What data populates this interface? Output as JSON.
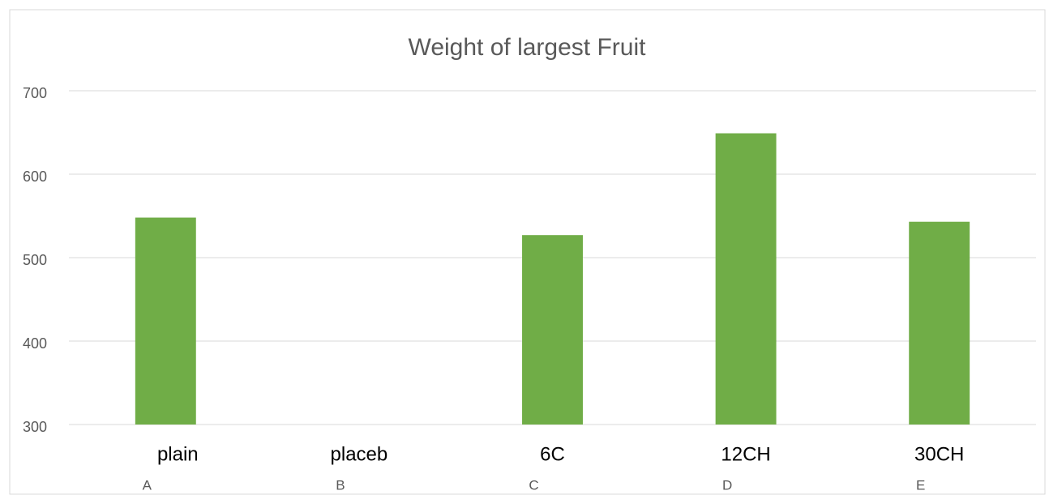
{
  "chart_data": {
    "type": "bar",
    "title": "Weight of largest Fruit",
    "categories": [
      "A",
      "B",
      "C",
      "D",
      "E"
    ],
    "category_labels": [
      "plain",
      "placeb",
      "6C",
      "12CH",
      "30CH"
    ],
    "values": [
      548,
      null,
      527,
      649,
      543
    ],
    "color": "#70ad47",
    "ylim": [
      300,
      700
    ],
    "yticks": [
      300,
      400,
      500,
      600,
      700
    ],
    "grid": true
  }
}
